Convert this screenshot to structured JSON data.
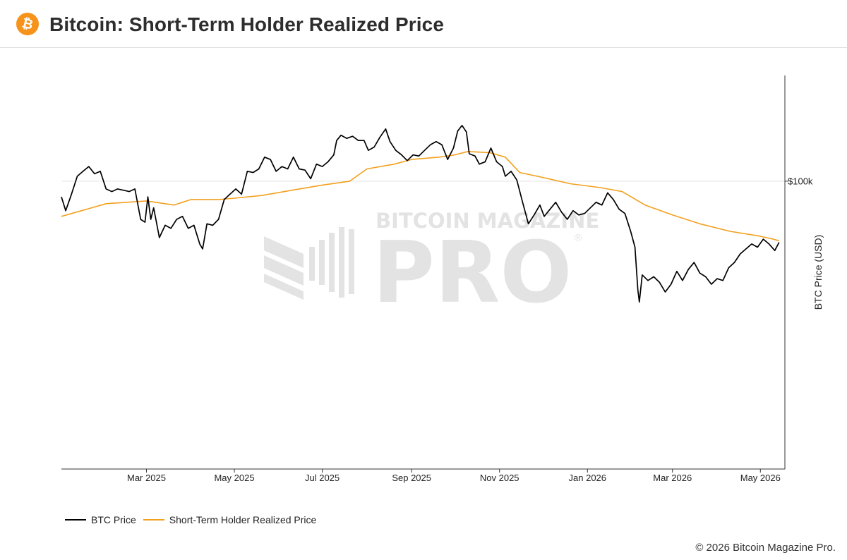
{
  "header": {
    "logo_glyph": "₿",
    "title": "Bitcoin: Short-Term Holder Realized Price"
  },
  "footer": {
    "copyright": "© 2026 Bitcoin Magazine Pro."
  },
  "watermark": {
    "top": "BITCOIN MAGAZINE",
    "main": "PRO",
    "mark": "®"
  },
  "legend": [
    {
      "label": "BTC Price",
      "color": "#000000"
    },
    {
      "label": "Short-Term Holder Realized Price",
      "color": "#f2a01e"
    }
  ],
  "chart_data": {
    "type": "line",
    "title": "Bitcoin: Short-Term Holder Realized Price",
    "xlabel": "",
    "ylabel": "BTC Price (USD)",
    "y_scale": "log",
    "y_axis_side": "right",
    "xlim": [
      "2025-01-01",
      "2026-05-18"
    ],
    "ylim": [
      32000,
      152000
    ],
    "x_ticks": [
      {
        "date": "2025-03-01",
        "label": "Mar 2025"
      },
      {
        "date": "2025-05-01",
        "label": "May 2025"
      },
      {
        "date": "2025-07-01",
        "label": "Jul 2025"
      },
      {
        "date": "2025-09-01",
        "label": "Sep 2025"
      },
      {
        "date": "2025-11-01",
        "label": "Nov 2025"
      },
      {
        "date": "2026-01-01",
        "label": "Jan 2026"
      },
      {
        "date": "2026-03-01",
        "label": "Mar 2026"
      },
      {
        "date": "2026-05-01",
        "label": "May 2026"
      }
    ],
    "y_ticks": [
      {
        "value": 100000,
        "label": "$100k"
      }
    ],
    "grid": true,
    "legend_position": "bottom-left",
    "series": [
      {
        "name": "BTC Price",
        "color": "#000000",
        "points": [
          [
            "2025-01-01",
            94000
          ],
          [
            "2025-01-04",
            89000
          ],
          [
            "2025-01-08",
            95000
          ],
          [
            "2025-01-12",
            102000
          ],
          [
            "2025-01-16",
            104000
          ],
          [
            "2025-01-20",
            106000
          ],
          [
            "2025-01-24",
            103000
          ],
          [
            "2025-01-28",
            104000
          ],
          [
            "2025-02-01",
            97000
          ],
          [
            "2025-02-05",
            96000
          ],
          [
            "2025-02-09",
            97000
          ],
          [
            "2025-02-13",
            96500
          ],
          [
            "2025-02-17",
            96000
          ],
          [
            "2025-02-21",
            97000
          ],
          [
            "2025-02-25",
            86000
          ],
          [
            "2025-02-28",
            85000
          ],
          [
            "2025-03-02",
            94000
          ],
          [
            "2025-03-04",
            86000
          ],
          [
            "2025-03-06",
            90000
          ],
          [
            "2025-03-10",
            80000
          ],
          [
            "2025-03-14",
            84000
          ],
          [
            "2025-03-18",
            83000
          ],
          [
            "2025-03-22",
            86000
          ],
          [
            "2025-03-26",
            87000
          ],
          [
            "2025-03-30",
            83000
          ],
          [
            "2025-04-03",
            84000
          ],
          [
            "2025-04-07",
            78000
          ],
          [
            "2025-04-09",
            76500
          ],
          [
            "2025-04-12",
            84500
          ],
          [
            "2025-04-16",
            84000
          ],
          [
            "2025-04-20",
            86000
          ],
          [
            "2025-04-24",
            93000
          ],
          [
            "2025-04-28",
            95000
          ],
          [
            "2025-05-02",
            97000
          ],
          [
            "2025-05-06",
            95000
          ],
          [
            "2025-05-10",
            104000
          ],
          [
            "2025-05-14",
            103500
          ],
          [
            "2025-05-18",
            105000
          ],
          [
            "2025-05-22",
            110000
          ],
          [
            "2025-05-26",
            109000
          ],
          [
            "2025-05-30",
            104000
          ],
          [
            "2025-06-03",
            106000
          ],
          [
            "2025-06-07",
            105000
          ],
          [
            "2025-06-11",
            110000
          ],
          [
            "2025-06-15",
            105000
          ],
          [
            "2025-06-19",
            104500
          ],
          [
            "2025-06-23",
            101000
          ],
          [
            "2025-06-27",
            107000
          ],
          [
            "2025-07-01",
            106000
          ],
          [
            "2025-07-05",
            108000
          ],
          [
            "2025-07-09",
            111000
          ],
          [
            "2025-07-11",
            117500
          ],
          [
            "2025-07-14",
            120000
          ],
          [
            "2025-07-18",
            118500
          ],
          [
            "2025-07-22",
            119500
          ],
          [
            "2025-07-26",
            117500
          ],
          [
            "2025-07-30",
            117500
          ],
          [
            "2025-08-02",
            113000
          ],
          [
            "2025-08-06",
            114500
          ],
          [
            "2025-08-10",
            119000
          ],
          [
            "2025-08-14",
            123000
          ],
          [
            "2025-08-17",
            117000
          ],
          [
            "2025-08-21",
            113000
          ],
          [
            "2025-08-25",
            111000
          ],
          [
            "2025-08-29",
            108500
          ],
          [
            "2025-09-02",
            111000
          ],
          [
            "2025-09-06",
            110500
          ],
          [
            "2025-09-10",
            113000
          ],
          [
            "2025-09-14",
            115500
          ],
          [
            "2025-09-18",
            117000
          ],
          [
            "2025-09-22",
            115500
          ],
          [
            "2025-09-26",
            109000
          ],
          [
            "2025-09-30",
            114000
          ],
          [
            "2025-10-03",
            122000
          ],
          [
            "2025-10-06",
            124700
          ],
          [
            "2025-10-09",
            121500
          ],
          [
            "2025-10-11",
            111500
          ],
          [
            "2025-10-15",
            110500
          ],
          [
            "2025-10-18",
            107000
          ],
          [
            "2025-10-22",
            108000
          ],
          [
            "2025-10-26",
            114000
          ],
          [
            "2025-10-30",
            108000
          ],
          [
            "2025-11-03",
            106000
          ],
          [
            "2025-11-05",
            102000
          ],
          [
            "2025-11-09",
            104000
          ],
          [
            "2025-11-13",
            100500
          ],
          [
            "2025-11-17",
            92000
          ],
          [
            "2025-11-21",
            84500
          ],
          [
            "2025-11-25",
            87500
          ],
          [
            "2025-11-29",
            91000
          ],
          [
            "2025-12-02",
            87000
          ],
          [
            "2025-12-06",
            89500
          ],
          [
            "2025-12-10",
            92000
          ],
          [
            "2025-12-14",
            88500
          ],
          [
            "2025-12-18",
            86000
          ],
          [
            "2025-12-22",
            89000
          ],
          [
            "2025-12-26",
            87500
          ],
          [
            "2025-12-30",
            88000
          ],
          [
            "2026-01-03",
            90000
          ],
          [
            "2026-01-07",
            92000
          ],
          [
            "2026-01-11",
            91000
          ],
          [
            "2026-01-15",
            95500
          ],
          [
            "2026-01-19",
            93000
          ],
          [
            "2026-01-23",
            89500
          ],
          [
            "2026-01-27",
            88000
          ],
          [
            "2026-01-31",
            82000
          ],
          [
            "2026-02-03",
            77000
          ],
          [
            "2026-02-05",
            65000
          ],
          [
            "2026-02-06",
            62000
          ],
          [
            "2026-02-08",
            69000
          ],
          [
            "2026-02-12",
            67500
          ],
          [
            "2026-02-16",
            68500
          ],
          [
            "2026-02-20",
            67000
          ],
          [
            "2026-02-24",
            64500
          ],
          [
            "2026-02-28",
            66500
          ],
          [
            "2026-03-04",
            70000
          ],
          [
            "2026-03-08",
            67500
          ],
          [
            "2026-03-12",
            70500
          ],
          [
            "2026-03-16",
            72500
          ],
          [
            "2026-03-20",
            69500
          ],
          [
            "2026-03-24",
            68500
          ],
          [
            "2026-03-28",
            66500
          ],
          [
            "2026-04-01",
            68000
          ],
          [
            "2026-04-05",
            67500
          ],
          [
            "2026-04-09",
            71000
          ],
          [
            "2026-04-13",
            72500
          ],
          [
            "2026-04-17",
            75000
          ],
          [
            "2026-04-21",
            76500
          ],
          [
            "2026-04-25",
            78000
          ],
          [
            "2026-04-29",
            77000
          ],
          [
            "2026-05-03",
            79500
          ],
          [
            "2026-05-07",
            78000
          ],
          [
            "2026-05-11",
            76000
          ],
          [
            "2026-05-14",
            78500
          ]
        ]
      },
      {
        "name": "Short-Term Holder Realized Price",
        "color": "#f2a01e",
        "points": [
          [
            "2025-01-01",
            87000
          ],
          [
            "2025-01-15",
            89000
          ],
          [
            "2025-02-01",
            91500
          ],
          [
            "2025-03-01",
            92500
          ],
          [
            "2025-03-20",
            91000
          ],
          [
            "2025-04-01",
            93000
          ],
          [
            "2025-04-20",
            93000
          ],
          [
            "2025-05-01",
            93500
          ],
          [
            "2025-05-20",
            94500
          ],
          [
            "2025-06-10",
            96500
          ],
          [
            "2025-07-01",
            98500
          ],
          [
            "2025-07-20",
            100000
          ],
          [
            "2025-08-01",
            105000
          ],
          [
            "2025-08-20",
            107000
          ],
          [
            "2025-09-01",
            109000
          ],
          [
            "2025-09-20",
            110000
          ],
          [
            "2025-10-01",
            111000
          ],
          [
            "2025-10-10",
            112500
          ],
          [
            "2025-10-25",
            112000
          ],
          [
            "2025-11-05",
            110000
          ],
          [
            "2025-11-15",
            103500
          ],
          [
            "2025-12-01",
            101500
          ],
          [
            "2025-12-20",
            99000
          ],
          [
            "2026-01-10",
            97500
          ],
          [
            "2026-01-25",
            96000
          ],
          [
            "2026-02-10",
            91000
          ],
          [
            "2026-03-01",
            87500
          ],
          [
            "2026-03-20",
            84500
          ],
          [
            "2026-04-10",
            82000
          ],
          [
            "2026-04-30",
            80500
          ],
          [
            "2026-05-10",
            79500
          ],
          [
            "2026-05-14",
            79000
          ]
        ]
      }
    ]
  }
}
